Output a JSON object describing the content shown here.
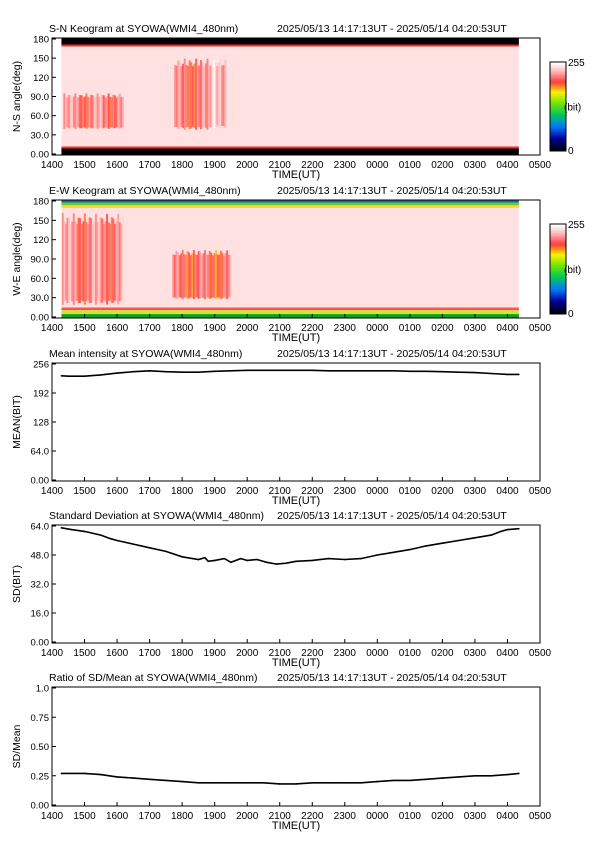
{
  "time_axis": {
    "xlabel": "TIME(UT)",
    "ticks": [
      "1400",
      "1500",
      "1600",
      "1700",
      "1800",
      "1900",
      "2000",
      "2100",
      "2200",
      "2300",
      "0000",
      "0100",
      "0200",
      "0300",
      "0400",
      "0500"
    ],
    "start_hour": 14.0,
    "end_hour": 29.0
  },
  "chart_data": [
    {
      "type": "heatmap",
      "title": "S-N Keogram at SYOWA(WMI4_480nm)",
      "time_range": "2025/05/13 14:17:13UT - 2025/05/14 04:20:53UT",
      "xlabel": "TIME(UT)",
      "ylabel": "N-S angle(deg)",
      "ylim": [
        0,
        180
      ],
      "yticks": [
        "0.00",
        "30.0",
        "60.0",
        "90.0",
        "120",
        "150",
        "180"
      ],
      "colorbar": {
        "max_label": "255",
        "min_label": "0",
        "unit_label": "(bit)"
      },
      "data_start_hour": 14.29,
      "data_end_hour": 28.35,
      "background_value": 245,
      "dark_bands_deg": [
        [
          0,
          10
        ],
        [
          170,
          180
        ]
      ],
      "aurora_patches": [
        {
          "t0": 14.35,
          "t1": 16.2,
          "a0": 40,
          "a1": 95,
          "value": 205
        },
        {
          "t0": 17.75,
          "t1": 18.9,
          "a0": 38,
          "a1": 150,
          "value": 200
        },
        {
          "t0": 18.9,
          "t1": 19.35,
          "a0": 40,
          "a1": 150,
          "value": 225
        }
      ]
    },
    {
      "type": "heatmap",
      "title": "E-W Keogram at SYOWA(WMI4_480nm)",
      "time_range": "2025/05/13 14:17:13UT - 2025/05/14 04:20:53UT",
      "xlabel": "TIME(UT)",
      "ylabel": "W-E angle(deg)",
      "ylim": [
        0,
        180
      ],
      "yticks": [
        "0.00",
        "30.0",
        "60.0",
        "90.0",
        "120",
        "150",
        "180"
      ],
      "colorbar": {
        "max_label": "255",
        "min_label": "0",
        "unit_label": "(bit)"
      },
      "data_start_hour": 14.29,
      "data_end_hour": 28.35,
      "background_value": 245,
      "edge_bands_deg": [
        [
          0,
          6
        ],
        [
          6,
          16
        ],
        [
          168,
          176
        ],
        [
          176,
          180
        ]
      ],
      "aurora_patches": [
        {
          "t0": 14.3,
          "t1": 16.2,
          "a0": 20,
          "a1": 160,
          "value": 205
        },
        {
          "t0": 17.7,
          "t1": 19.5,
          "a0": 28,
          "a1": 105,
          "value": 195
        }
      ]
    },
    {
      "type": "line",
      "title": "Mean intensity at SYOWA(WMI4_480nm)",
      "time_range": "2025/05/13 14:17:13UT - 2025/05/14 04:20:53UT",
      "xlabel": "TIME(UT)",
      "ylabel": "MEAN(BIT)",
      "ylim": [
        0,
        256
      ],
      "yticks": [
        "0.00",
        "64.0",
        "128",
        "192",
        "256"
      ],
      "series": [
        {
          "x": [
            14.29,
            14.5,
            15.0,
            15.5,
            16.0,
            16.5,
            17.0,
            17.5,
            18.0,
            18.5,
            19.0,
            19.5,
            20.0,
            20.5,
            21.0,
            21.5,
            22.0,
            22.5,
            23.0,
            23.5,
            24.0,
            24.5,
            25.0,
            25.5,
            26.0,
            26.5,
            27.0,
            27.5,
            28.0,
            28.35
          ],
          "y": [
            230,
            229,
            229,
            232,
            236,
            239,
            241,
            239,
            238,
            238,
            240,
            241,
            242,
            242,
            242,
            242,
            242,
            241,
            241,
            241,
            241,
            241,
            240,
            240,
            239,
            238,
            237,
            235,
            233,
            233
          ]
        }
      ]
    },
    {
      "type": "line",
      "title": "Standard Deviation at SYOWA(WMI4_480nm)",
      "time_range": "2025/05/13 14:17:13UT - 2025/05/14 04:20:53UT",
      "xlabel": "TIME(UT)",
      "ylabel": "SD(BIT)",
      "ylim": [
        0,
        64
      ],
      "yticks": [
        "0.00",
        "16.0",
        "32.0",
        "48.0",
        "64.0"
      ],
      "series": [
        {
          "x": [
            14.29,
            14.6,
            15.0,
            15.5,
            15.8,
            16.0,
            16.5,
            17.0,
            17.5,
            18.0,
            18.5,
            18.7,
            18.8,
            19.0,
            19.3,
            19.5,
            19.8,
            20.0,
            20.3,
            20.6,
            20.9,
            21.2,
            21.5,
            22.0,
            22.5,
            23.0,
            23.5,
            24.0,
            24.5,
            25.0,
            25.5,
            26.0,
            26.5,
            27.0,
            27.5,
            27.8,
            28.0,
            28.35
          ],
          "y": [
            63.0,
            62.0,
            61.0,
            59.0,
            57.0,
            56.0,
            54.0,
            52.0,
            50.0,
            47.0,
            45.5,
            46.5,
            44.5,
            45.0,
            46.0,
            44.0,
            46.0,
            45.0,
            45.5,
            44.0,
            43.0,
            43.5,
            44.5,
            45.0,
            46.0,
            45.5,
            46.0,
            48.0,
            49.5,
            51.0,
            53.0,
            54.5,
            56.0,
            57.5,
            59.0,
            61.0,
            62.0,
            62.5
          ]
        }
      ]
    },
    {
      "type": "line",
      "title": "Ratio of SD/Mean at SYOWA(WMI4_480nm)",
      "time_range": "2025/05/13 14:17:13UT - 2025/05/14 04:20:53UT",
      "xlabel": "TIME(UT)",
      "ylabel": "SD/Mean",
      "ylim": [
        0,
        1.0
      ],
      "yticks": [
        "0.00",
        "0.25",
        "0.50",
        "0.75",
        "1.0"
      ],
      "series": [
        {
          "x": [
            14.29,
            15.0,
            15.5,
            16.0,
            16.5,
            17.0,
            17.5,
            18.0,
            18.5,
            19.0,
            19.5,
            20.0,
            20.5,
            21.0,
            21.5,
            22.0,
            22.5,
            23.0,
            23.5,
            24.0,
            24.5,
            25.0,
            25.5,
            26.0,
            26.5,
            27.0,
            27.5,
            28.0,
            28.35
          ],
          "y": [
            0.27,
            0.27,
            0.26,
            0.24,
            0.23,
            0.22,
            0.21,
            0.2,
            0.19,
            0.19,
            0.19,
            0.19,
            0.19,
            0.18,
            0.18,
            0.19,
            0.19,
            0.19,
            0.19,
            0.2,
            0.21,
            0.21,
            0.22,
            0.23,
            0.24,
            0.25,
            0.25,
            0.26,
            0.27
          ]
        }
      ]
    }
  ]
}
